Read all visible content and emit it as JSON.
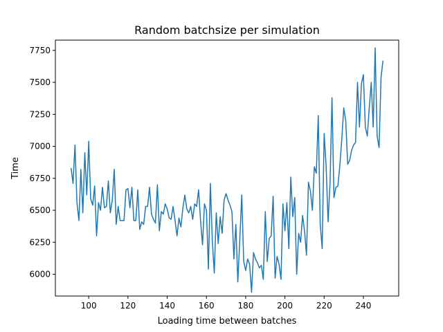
{
  "chart_data": {
    "type": "line",
    "title": "Random batchsize per simulation",
    "xlabel": "Loading time between batches",
    "ylabel": "Time",
    "xlim": [
      83,
      258
    ],
    "ylim": [
      5830,
      7830
    ],
    "xticks": [
      100,
      120,
      140,
      160,
      180,
      200,
      220,
      240
    ],
    "yticks": [
      6000,
      6250,
      6500,
      6750,
      7000,
      7250,
      7500,
      7750
    ],
    "grid": false,
    "line_color": "#1f77b4",
    "series": [
      {
        "x": [
          91,
          92,
          93,
          94,
          95,
          96,
          97,
          98,
          99,
          100,
          101,
          102,
          103,
          104,
          105,
          106,
          107,
          108,
          109,
          110,
          111,
          112,
          113,
          114,
          115,
          116,
          117,
          118,
          119,
          120,
          121,
          122,
          123,
          124,
          125,
          126,
          127,
          128,
          129,
          130,
          131,
          132,
          133,
          134,
          135,
          136,
          137,
          138,
          139,
          140,
          141,
          142,
          143,
          144,
          145,
          146,
          147,
          148,
          149,
          150,
          151,
          152,
          153,
          154,
          155,
          156,
          157,
          158,
          159,
          160,
          161,
          162,
          163,
          164,
          165,
          166,
          167,
          168,
          169,
          170,
          171,
          172,
          173,
          174,
          175,
          176,
          177,
          178,
          179,
          180,
          181,
          182,
          183,
          184,
          185,
          186,
          187,
          188,
          189,
          190,
          191,
          192,
          193,
          194,
          195,
          196,
          197,
          198,
          199,
          200,
          201,
          202,
          203,
          204,
          205,
          206,
          207,
          208,
          209,
          210,
          211,
          212,
          213,
          214,
          215,
          216,
          217,
          218,
          219,
          220,
          221,
          222,
          223,
          224,
          225,
          226,
          227,
          228,
          229,
          230,
          231,
          232,
          233,
          234,
          235,
          236,
          237,
          238,
          239,
          240,
          241,
          242,
          243,
          244,
          245,
          246,
          247,
          248,
          249,
          250
        ],
        "y": [
          6830,
          6710,
          7010,
          6560,
          6420,
          6820,
          6480,
          6950,
          6620,
          7040,
          6590,
          6540,
          6690,
          6300,
          6560,
          6500,
          6680,
          6520,
          6530,
          6730,
          6480,
          6580,
          6820,
          6390,
          6530,
          6420,
          6420,
          6420,
          6660,
          6670,
          6520,
          6680,
          6420,
          6420,
          6660,
          6350,
          6410,
          6390,
          6530,
          6530,
          6680,
          6470,
          6430,
          6400,
          6700,
          6340,
          6490,
          6470,
          6550,
          6510,
          6440,
          6430,
          6530,
          6420,
          6300,
          6440,
          6370,
          6520,
          6620,
          6510,
          6480,
          6530,
          6430,
          6550,
          6530,
          6660,
          6420,
          6230,
          6550,
          6500,
          6040,
          6710,
          6260,
          6010,
          6480,
          6240,
          6450,
          6320,
          6580,
          6630,
          6580,
          6540,
          6490,
          6120,
          6390,
          5940,
          6270,
          6620,
          6100,
          6030,
          6120,
          6080,
          5860,
          6170,
          6120,
          6090,
          6050,
          6070,
          5960,
          6490,
          6100,
          6280,
          6300,
          6610,
          5970,
          6140,
          6080,
          5960,
          6550,
          6340,
          6560,
          6200,
          6760,
          6450,
          6600,
          6000,
          6320,
          6250,
          6460,
          6340,
          6150,
          6720,
          6650,
          6500,
          6840,
          6790,
          7240,
          6390,
          6200,
          7100,
          6850,
          6410,
          6710,
          7380,
          6600,
          6680,
          6690,
          6850,
          7060,
          7300,
          7200,
          6860,
          6890,
          6970,
          7010,
          7030,
          7500,
          7150,
          7490,
          7560,
          7150,
          7080,
          7300,
          7500,
          7150,
          7770,
          7080,
          6990,
          7540,
          7670
        ]
      }
    ]
  }
}
